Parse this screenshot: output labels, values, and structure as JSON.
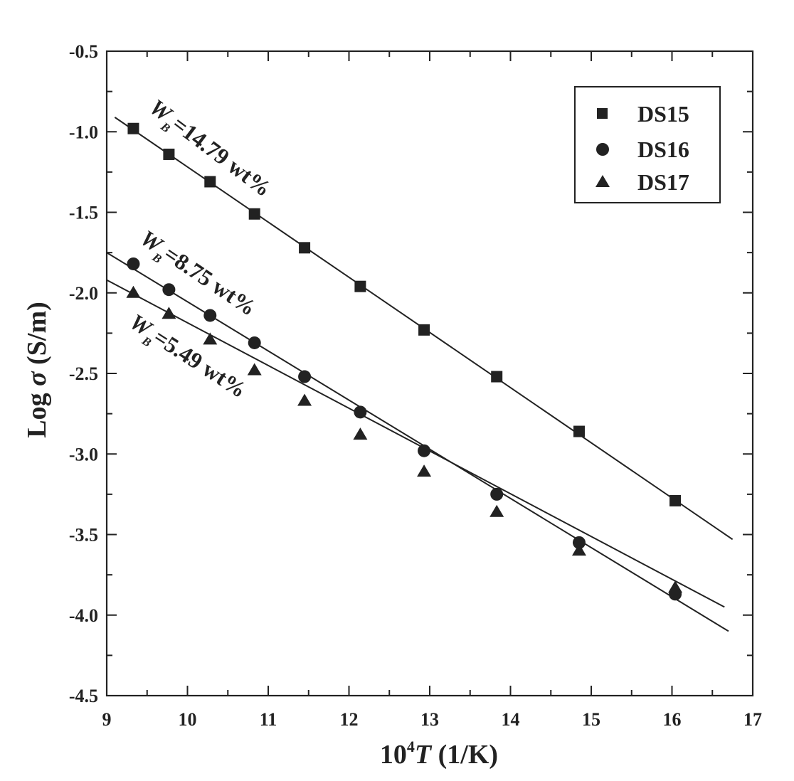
{
  "chart_data": {
    "type": "scatter",
    "title": "",
    "xlabel_base": "10",
    "xlabel_exp": "4",
    "xlabel_var": "T",
    "xlabel_unit": " (1/K)",
    "ylabel_main": "Log ",
    "ylabel_sigma": "σ",
    "ylabel_unit": " (S/m)",
    "xlim": [
      9,
      17
    ],
    "ylim": [
      -4.5,
      -0.5
    ],
    "x_ticks": [
      9,
      10,
      11,
      12,
      13,
      14,
      15,
      16,
      17
    ],
    "x_tick_labels": [
      "9",
      "10",
      "11",
      "12",
      "13",
      "14",
      "15",
      "16",
      "17"
    ],
    "y_ticks": [
      -4.5,
      -4.0,
      -3.5,
      -3.0,
      -2.5,
      -2.0,
      -1.5,
      -1.0,
      -0.5
    ],
    "y_tick_labels": [
      "-4.5",
      "-4.0",
      "-3.5",
      "-3.0",
      "-2.5",
      "-2.0",
      "-1.5",
      "-1.0",
      "-0.5"
    ],
    "legend_position": "top-right",
    "series": [
      {
        "name": "DS15",
        "marker": "square",
        "x": [
          9.33,
          9.77,
          10.28,
          10.83,
          11.45,
          12.14,
          12.93,
          13.83,
          14.85,
          16.04
        ],
        "y": [
          -0.98,
          -1.14,
          -1.31,
          -1.51,
          -1.72,
          -1.96,
          -2.23,
          -2.52,
          -2.86,
          -3.29
        ],
        "fit_x": [
          9.1,
          16.75
        ],
        "fit_y": [
          -0.91,
          -3.53
        ]
      },
      {
        "name": "DS16",
        "marker": "circle",
        "x": [
          9.33,
          9.77,
          10.28,
          10.83,
          11.45,
          12.14,
          12.93,
          13.83,
          14.85,
          16.04
        ],
        "y": [
          -1.82,
          -1.98,
          -2.14,
          -2.31,
          -2.52,
          -2.74,
          -2.98,
          -3.25,
          -3.55,
          -3.87
        ],
        "fit_x": [
          9.0,
          16.7
        ],
        "fit_y": [
          -1.75,
          -4.1
        ]
      },
      {
        "name": "DS17",
        "marker": "triangle",
        "x": [
          9.33,
          9.77,
          10.28,
          10.83,
          11.45,
          12.14,
          12.93,
          13.83,
          14.85,
          16.04
        ],
        "y": [
          -2.0,
          -2.13,
          -2.29,
          -2.48,
          -2.67,
          -2.88,
          -3.11,
          -3.36,
          -3.6,
          -3.83
        ],
        "fit_x": [
          9.0,
          16.65
        ],
        "fit_y": [
          -1.92,
          -3.95
        ]
      }
    ],
    "annotations": [
      {
        "main": "W",
        "sub": "B",
        "text": "=14.79 wt%"
      },
      {
        "main": "W",
        "sub": "B",
        "text": "=8.75 wt%"
      },
      {
        "main": "W",
        "sub": "B",
        "text": "=5.49 wt%"
      }
    ]
  }
}
